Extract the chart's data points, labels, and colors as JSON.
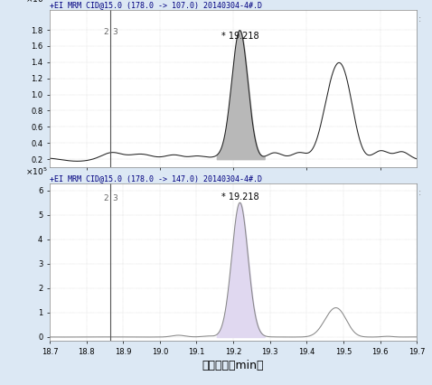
{
  "title1": "+EI MRM CID@15.0 (178.0 -> 107.0) 20140304-4#.D",
  "title2": "+EI MRM CID@15.0 (178.0 -> 147.0) 20140304-4#.D",
  "xlabel": "采集时间（min）",
  "xmin": 18.7,
  "xmax": 19.7,
  "yticks1": [
    0.2,
    0.4,
    0.6,
    0.8,
    1.0,
    1.2,
    1.4,
    1.6,
    1.8
  ],
  "yticks2": [
    0,
    1,
    2,
    3,
    4,
    5,
    6
  ],
  "peak_label": "* 19.218",
  "vline_x": 18.865,
  "vline_label1": "2",
  "vline_label2": "3",
  "bg_color": "#dce8f4",
  "plot_bg": "#ffffff",
  "line_color1": "#222222",
  "fill_color1": "#b8b8b8",
  "line_color2": "#888888",
  "fill_color2": "#e0d8f0",
  "xtick_vals": [
    18.7,
    18.8,
    18.9,
    19.0,
    19.1,
    19.2,
    19.3,
    19.4,
    19.5,
    19.6,
    19.7
  ]
}
